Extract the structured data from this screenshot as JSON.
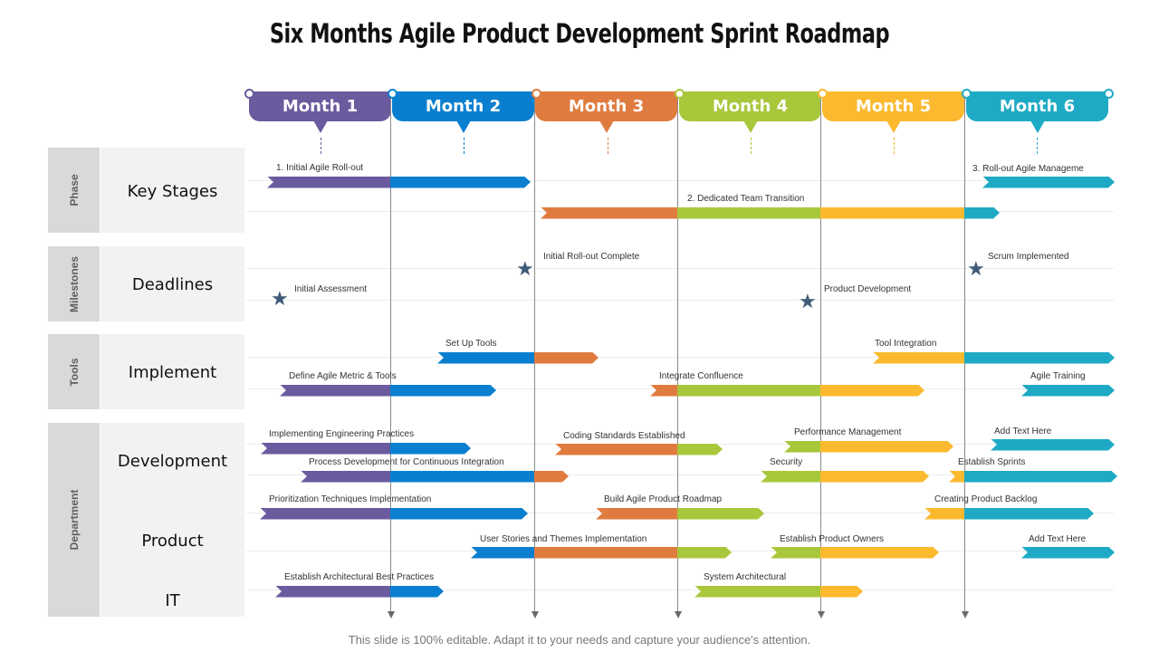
{
  "title": "Six Months Agile Product Development Sprint Roadmap",
  "footer": "This slide is 100% editable. Adapt it to your needs and capture your audience's attention.",
  "colors": {
    "month1": "#6a5a9e",
    "month2": "#0a7fd0",
    "month3": "#e07b3f",
    "month4": "#a8c73b",
    "month5": "#fbb92f",
    "month6": "#1eaac4"
  },
  "months": [
    "Month 1",
    "Month 2",
    "Month 3",
    "Month 4",
    "Month 5",
    "Month 6"
  ],
  "categories": [
    "Phase",
    "Milestones",
    "Tools",
    "Department"
  ],
  "rows": [
    "Key Stages",
    "Deadlines",
    "Implement",
    "Development",
    "Product",
    "IT"
  ],
  "bar_labels": {
    "b1": "1. Initial Agile Roll-out",
    "b2": "3. Roll-out Agile Manageme",
    "b3": "2. Dedicated Team Transition",
    "b4": "Set Up Tools",
    "b5": "Tool Integration",
    "b6": "Define Agile Metric & Tools",
    "b7": "Integrate Confluence",
    "b8": "Agile Training",
    "b9": "Implementing Engineering Practices",
    "b10": "Coding Standards Established",
    "b11": "Performance Management",
    "b12": "Add Text Here",
    "b13": "Process Development for Continuous Integration",
    "b14": "Security",
    "b15": "Establish Sprints",
    "b16": "Prioritization Techniques Implementation",
    "b17": "Build Agile Product Roadmap",
    "b18": "Creating Product Backlog",
    "b19": "User Stories and Themes Implementation",
    "b20": "Establish Product Owners",
    "b21": "Add Text Here",
    "b22": "Establish Architectural Best Practices",
    "b23": "System Architectural"
  },
  "milestones": {
    "m1": "Initial Roll-out Complete",
    "m2": "Scrum Implemented",
    "m3": "Initial Assessment",
    "m4": "Product Development"
  }
}
